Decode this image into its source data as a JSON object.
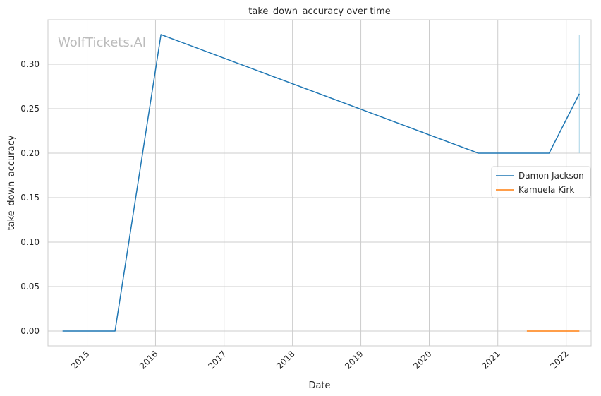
{
  "chart_data": {
    "type": "line",
    "title": "take_down_accuracy over time",
    "xlabel": "Date",
    "ylabel": "take_down_accuracy",
    "watermark": "WolfTickets.AI",
    "x_ticks": [
      "2015",
      "2016",
      "2017",
      "2018",
      "2019",
      "2020",
      "2021",
      "2022"
    ],
    "y_ticks": [
      "0.00",
      "0.05",
      "0.10",
      "0.15",
      "0.20",
      "0.25",
      "0.30"
    ],
    "xlim": [
      "2014-06-06",
      "2022-05-14"
    ],
    "ylim": [
      -0.0167,
      0.35
    ],
    "grid": true,
    "legend_position": "center-right",
    "series": [
      {
        "name": "Damon Jackson",
        "color": "#1f77b4",
        "points": [
          {
            "x": "2014-08-23",
            "y": 0.0
          },
          {
            "x": "2015-05-30",
            "y": 0.0
          },
          {
            "x": "2016-01-30",
            "y": 0.3333
          },
          {
            "x": "2020-09-19",
            "y": 0.2
          },
          {
            "x": "2021-10-02",
            "y": 0.2
          },
          {
            "x": "2022-03-12",
            "y": 0.2667
          }
        ]
      },
      {
        "name": "Kamuela Kirk",
        "color": "#ff7f0e",
        "points": [
          {
            "x": "2021-06-05",
            "y": 0.0
          },
          {
            "x": "2022-03-12",
            "y": 0.0
          }
        ]
      }
    ],
    "annotations": [
      {
        "type": "vline",
        "x": "2022-03-12",
        "y_range": [
          0.2,
          0.3333
        ],
        "color": "#a9d3e6"
      }
    ]
  }
}
